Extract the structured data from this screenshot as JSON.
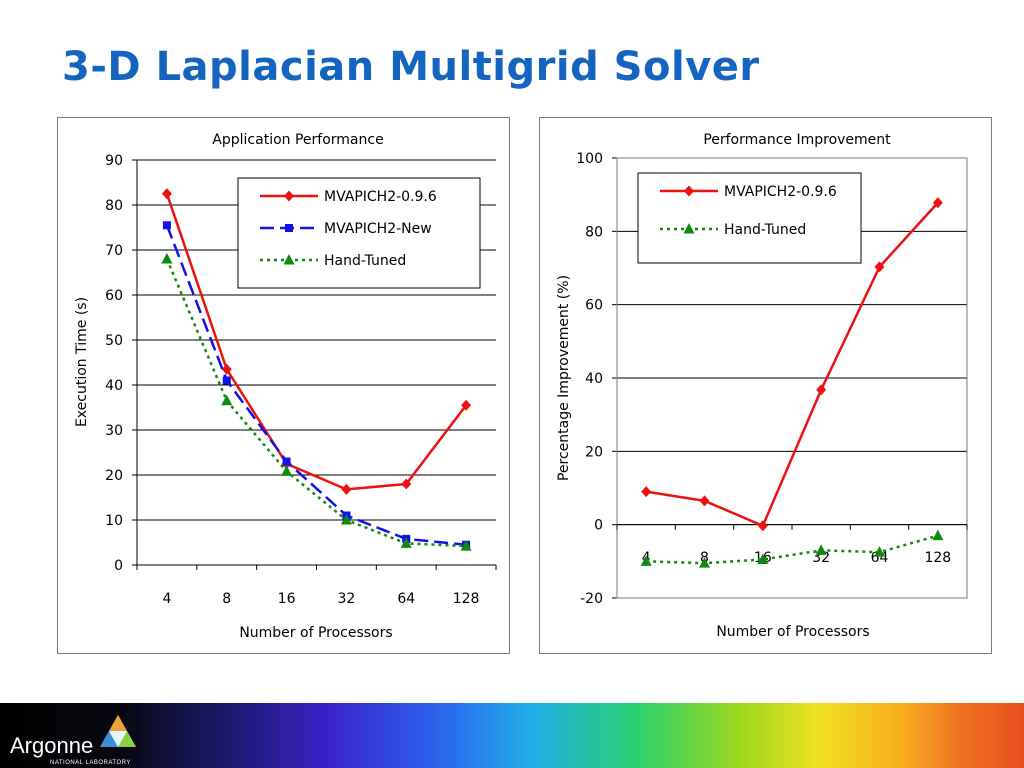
{
  "slide": {
    "title": "3-D Laplacian Multigrid Solver"
  },
  "footer": {
    "logo_text": "Argonne",
    "logo_subtext": "NATIONAL LABORATORY"
  },
  "chart_data": [
    {
      "type": "line",
      "title": "Application Performance",
      "xlabel": "Number of Processors",
      "ylabel": "Execution Time (s)",
      "categories": [
        "4",
        "8",
        "16",
        "32",
        "64",
        "128"
      ],
      "ylim": [
        0,
        90
      ],
      "yticks": [
        0,
        10,
        20,
        30,
        40,
        50,
        60,
        70,
        80,
        90
      ],
      "grid": true,
      "legend": "top-right",
      "series": [
        {
          "name": "MVAPICH2-0.9.6",
          "values": [
            82.5,
            43.5,
            22.5,
            16.8,
            18,
            35.5
          ],
          "color": "#ee1111",
          "marker": "diamond",
          "dash": "solid"
        },
        {
          "name": "MVAPICH2-New",
          "values": [
            75.5,
            41,
            23,
            11,
            5.8,
            4.5
          ],
          "color": "#1111ee",
          "marker": "square",
          "dash": "longdash"
        },
        {
          "name": "Hand-Tuned",
          "values": [
            68,
            36.5,
            20.8,
            10,
            4.8,
            4.2
          ],
          "color": "#118811",
          "marker": "triangle",
          "dash": "dotted"
        }
      ]
    },
    {
      "type": "line",
      "title": "Performance Improvement",
      "xlabel": "Number of Processors",
      "ylabel": "Percentage Improvement (%)",
      "categories": [
        "4",
        "8",
        "16",
        "32",
        "64",
        "128"
      ],
      "ylim": [
        -20,
        100
      ],
      "yticks": [
        -20,
        0,
        20,
        40,
        60,
        80,
        100
      ],
      "grid": true,
      "legend": "top-left",
      "series": [
        {
          "name": "MVAPICH2-0.9.6",
          "values": [
            9,
            6.5,
            -0.3,
            36.8,
            70.3,
            87.8
          ],
          "color": "#ee1111",
          "marker": "diamond",
          "dash": "solid"
        },
        {
          "name": "Hand-Tuned",
          "values": [
            -10,
            -10.5,
            -9.5,
            -7,
            -7.5,
            -3
          ],
          "color": "#118811",
          "marker": "triangle",
          "dash": "dotted"
        }
      ]
    }
  ]
}
